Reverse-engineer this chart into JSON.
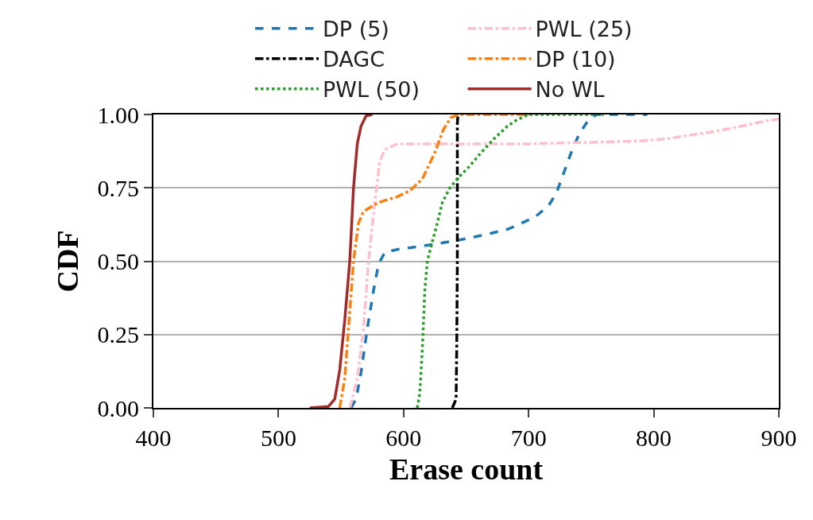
{
  "chart_data": {
    "type": "line",
    "xlabel": "Erase count",
    "ylabel": "CDF",
    "xlim": [
      400,
      900
    ],
    "xticks": [
      400,
      500,
      600,
      700,
      800,
      900
    ],
    "ylim": [
      0,
      1
    ],
    "yticks": [
      {
        "value": 0,
        "label": "0.00"
      },
      {
        "value": 0.25,
        "label": "0.25"
      },
      {
        "value": 0.5,
        "label": "0.50"
      },
      {
        "value": 0.75,
        "label": "0.75"
      },
      {
        "value": 1,
        "label": "1.00"
      }
    ],
    "grid": "y",
    "legend": "top",
    "marker": "none",
    "series": [
      {
        "name": "DP (5)",
        "color": "#1f77b4",
        "line_style": "dashed",
        "x": [
          558,
          562,
          566,
          571,
          576,
          580,
          585,
          595,
          620,
          642,
          665,
          684,
          705,
          716,
          722,
          728,
          734,
          740,
          746,
          754,
          795
        ],
        "values": [
          0,
          0.03,
          0.12,
          0.27,
          0.4,
          0.49,
          0.53,
          0.54,
          0.555,
          0.57,
          0.59,
          0.61,
          0.65,
          0.69,
          0.73,
          0.8,
          0.87,
          0.93,
          0.97,
          1,
          1
        ]
      },
      {
        "name": "PWL (25)",
        "color": "#ffc0cb",
        "line_style": "dashdot",
        "x": [
          557,
          563,
          568,
          572,
          577,
          581,
          585,
          595,
          700,
          750,
          790,
          810,
          830,
          850,
          870,
          892,
          900
        ],
        "values": [
          0,
          0.1,
          0.27,
          0.5,
          0.7,
          0.84,
          0.88,
          0.9,
          0.9,
          0.905,
          0.91,
          0.917,
          0.93,
          0.943,
          0.96,
          0.98,
          0.985
        ]
      },
      {
        "name": "DAGC",
        "color": "#000000",
        "line_style": "dashdot",
        "x": [
          639,
          642,
          642.5,
          643,
          643,
          643.5
        ],
        "values": [
          0,
          0.03,
          0.2,
          0.5,
          0.97,
          1
        ]
      },
      {
        "name": "DP (10)",
        "color": "#ff7f0e",
        "line_style": "dashdot",
        "x": [
          549,
          553,
          556,
          560,
          564,
          568,
          580,
          595,
          605,
          615,
          625,
          632,
          638,
          645,
          700
        ],
        "values": [
          0,
          0.1,
          0.27,
          0.5,
          0.63,
          0.67,
          0.7,
          0.72,
          0.74,
          0.78,
          0.87,
          0.95,
          0.99,
          1,
          1
        ]
      },
      {
        "name": "PWL (50)",
        "color": "#2ca02c",
        "line_style": "dotted",
        "x": [
          611,
          613,
          615,
          617,
          619,
          622,
          627,
          631,
          637,
          645,
          652,
          662,
          673,
          683,
          690,
          700,
          760
        ],
        "values": [
          0,
          0.05,
          0.2,
          0.4,
          0.5,
          0.55,
          0.63,
          0.7,
          0.75,
          0.79,
          0.82,
          0.87,
          0.92,
          0.96,
          0.98,
          1,
          1
        ]
      },
      {
        "name": "No WL",
        "color": "#a52a2a",
        "line_style": "solid",
        "x": [
          525,
          540,
          545,
          549,
          553,
          557,
          560,
          563,
          566,
          570,
          575
        ],
        "values": [
          0,
          0.005,
          0.03,
          0.13,
          0.3,
          0.5,
          0.75,
          0.9,
          0.96,
          0.995,
          1
        ]
      }
    ]
  }
}
